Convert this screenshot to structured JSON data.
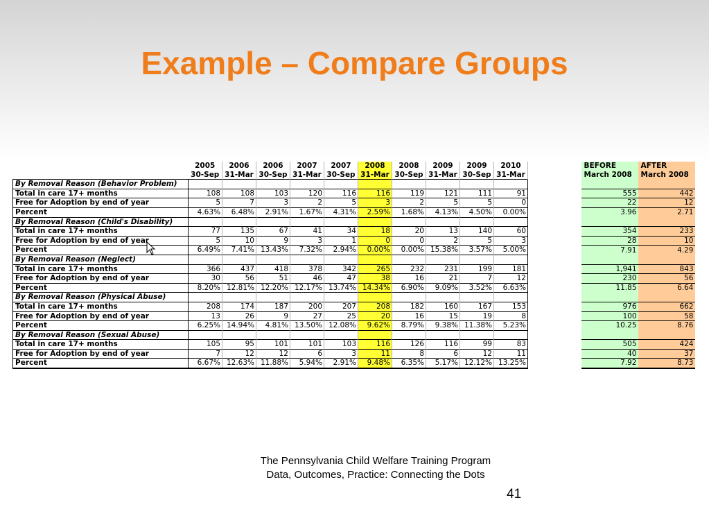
{
  "title": "Example – Compare Groups",
  "table": {
    "years": [
      "2005",
      "2006",
      "2006",
      "2007",
      "2007",
      "2008",
      "2008",
      "2009",
      "2009",
      "2010"
    ],
    "dates": [
      "30-Sep",
      "31-Mar",
      "30-Sep",
      "31-Mar",
      "30-Sep",
      "31-Mar",
      "30-Sep",
      "31-Mar",
      "30-Sep",
      "31-Mar"
    ],
    "before_header": [
      "BEFORE",
      "March 2008"
    ],
    "after_header": [
      "AFTER",
      "March 2008"
    ],
    "sections": [
      {
        "name": "By Removal Reason (Behavior Problem)",
        "rows": [
          {
            "label": "Total in care 17+ months",
            "values": [
              "108",
              "108",
              "103",
              "120",
              "116",
              "116",
              "119",
              "121",
              "111",
              "91"
            ],
            "before": "555",
            "after": "442"
          },
          {
            "label": "Free for Adoption by end of year",
            "values": [
              "5",
              "7",
              "3",
              "2",
              "5",
              "3",
              "2",
              "5",
              "5",
              "0"
            ],
            "before": "22",
            "after": "12"
          },
          {
            "label": "Percent",
            "values": [
              "4.63%",
              "6.48%",
              "2.91%",
              "1.67%",
              "4.31%",
              "2.59%",
              "1.68%",
              "4.13%",
              "4.50%",
              "0.00%"
            ],
            "before": "3.96",
            "after": "2.71"
          }
        ]
      },
      {
        "name": "By Removal Reason (Child's Disability)",
        "rows": [
          {
            "label": "Total in care 17+ months",
            "values": [
              "77",
              "135",
              "67",
              "41",
              "34",
              "18",
              "20",
              "13",
              "140",
              "60"
            ],
            "before": "354",
            "after": "233"
          },
          {
            "label": "Free for Adoption by end of year",
            "values": [
              "5",
              "10",
              "9",
              "3",
              "1",
              "0",
              "0",
              "2",
              "5",
              "3"
            ],
            "before": "28",
            "after": "10"
          },
          {
            "label": "Percent",
            "values": [
              "6.49%",
              "7.41%",
              "13.43%",
              "7.32%",
              "2.94%",
              "0.00%",
              "0.00%",
              "15.38%",
              "3.57%",
              "5.00%"
            ],
            "before": "7.91",
            "after": "4.29"
          }
        ]
      },
      {
        "name": "By Removal Reason (Neglect)",
        "rows": [
          {
            "label": "Total in care 17+ months",
            "values": [
              "366",
              "437",
              "418",
              "378",
              "342",
              "265",
              "232",
              "231",
              "199",
              "181"
            ],
            "before": "1,941",
            "after": "843"
          },
          {
            "label": "Free for Adoption by end of year",
            "values": [
              "30",
              "56",
              "51",
              "46",
              "47",
              "38",
              "16",
              "21",
              "7",
              "12"
            ],
            "before": "230",
            "after": "56"
          },
          {
            "label": "Percent",
            "values": [
              "8.20%",
              "12.81%",
              "12.20%",
              "12.17%",
              "13.74%",
              "14.34%",
              "6.90%",
              "9.09%",
              "3.52%",
              "6.63%"
            ],
            "before": "11.85",
            "after": "6.64"
          }
        ]
      },
      {
        "name": "By Removal Reason (Physical Abuse)",
        "rows": [
          {
            "label": "Total in care 17+ months",
            "values": [
              "208",
              "174",
              "187",
              "200",
              "207",
              "208",
              "182",
              "160",
              "167",
              "153"
            ],
            "before": "976",
            "after": "662"
          },
          {
            "label": "Free for Adoption by end of year",
            "values": [
              "13",
              "26",
              "9",
              "27",
              "25",
              "20",
              "16",
              "15",
              "19",
              "8"
            ],
            "before": "100",
            "after": "58"
          },
          {
            "label": "Percent",
            "values": [
              "6.25%",
              "14.94%",
              "4.81%",
              "13.50%",
              "12.08%",
              "9.62%",
              "8.79%",
              "9.38%",
              "11.38%",
              "5.23%"
            ],
            "before": "10.25",
            "after": "8.76"
          }
        ]
      },
      {
        "name": "By Removal Reason (Sexual Abuse)",
        "rows": [
          {
            "label": "Total in care 17+ months",
            "values": [
              "105",
              "95",
              "101",
              "101",
              "103",
              "116",
              "126",
              "116",
              "99",
              "83"
            ],
            "before": "505",
            "after": "424"
          },
          {
            "label": "Free for Adoption by end of year",
            "values": [
              "7",
              "12",
              "12",
              "6",
              "3",
              "11",
              "8",
              "6",
              "12",
              "11"
            ],
            "before": "40",
            "after": "37"
          },
          {
            "label": "Percent",
            "values": [
              "6.67%",
              "12.63%",
              "11.88%",
              "5.94%",
              "2.91%",
              "9.48%",
              "6.35%",
              "5.17%",
              "12.12%",
              "13.25%"
            ],
            "before": "7.92",
            "after": "8.73"
          }
        ]
      }
    ]
  },
  "footer": {
    "line1": "The Pennsylvania Child Welfare Training Program",
    "line2": "Data, Outcomes, Practice: Connecting the Dots"
  },
  "page_number": "41",
  "colors": {
    "title": "#f07d1b",
    "highlight_2008": "#ffff33",
    "before_fill": "#ccffcc",
    "after_fill": "#ffcc99"
  },
  "icons": {
    "cursor": "mouse-pointer-icon"
  }
}
